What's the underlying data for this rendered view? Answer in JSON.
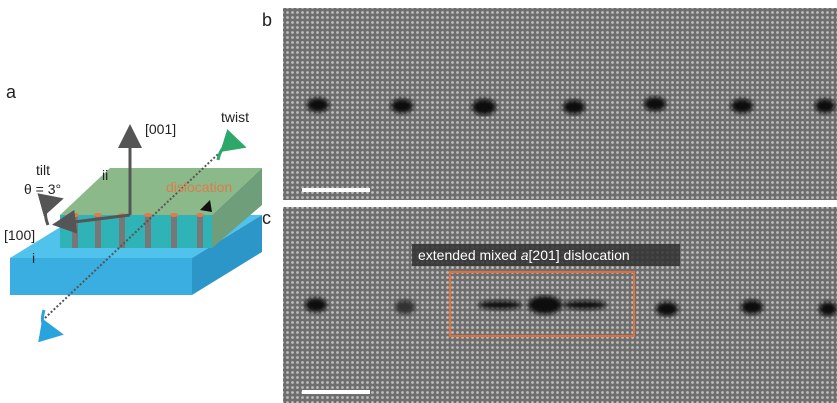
{
  "panels": {
    "a": {
      "label": "a",
      "axis_001": "[001]",
      "axis_100": "[100]",
      "twist": "twist",
      "tilt": "tilt",
      "theta": "θ = 3°",
      "grain_ii": "ii",
      "grain_i": "i",
      "dislocation": "dislocation"
    },
    "b": {
      "label": "b"
    },
    "c": {
      "label": "c",
      "caption": [
        "extended mixed ",
        "a",
        "[201] dislocation"
      ]
    }
  }
}
